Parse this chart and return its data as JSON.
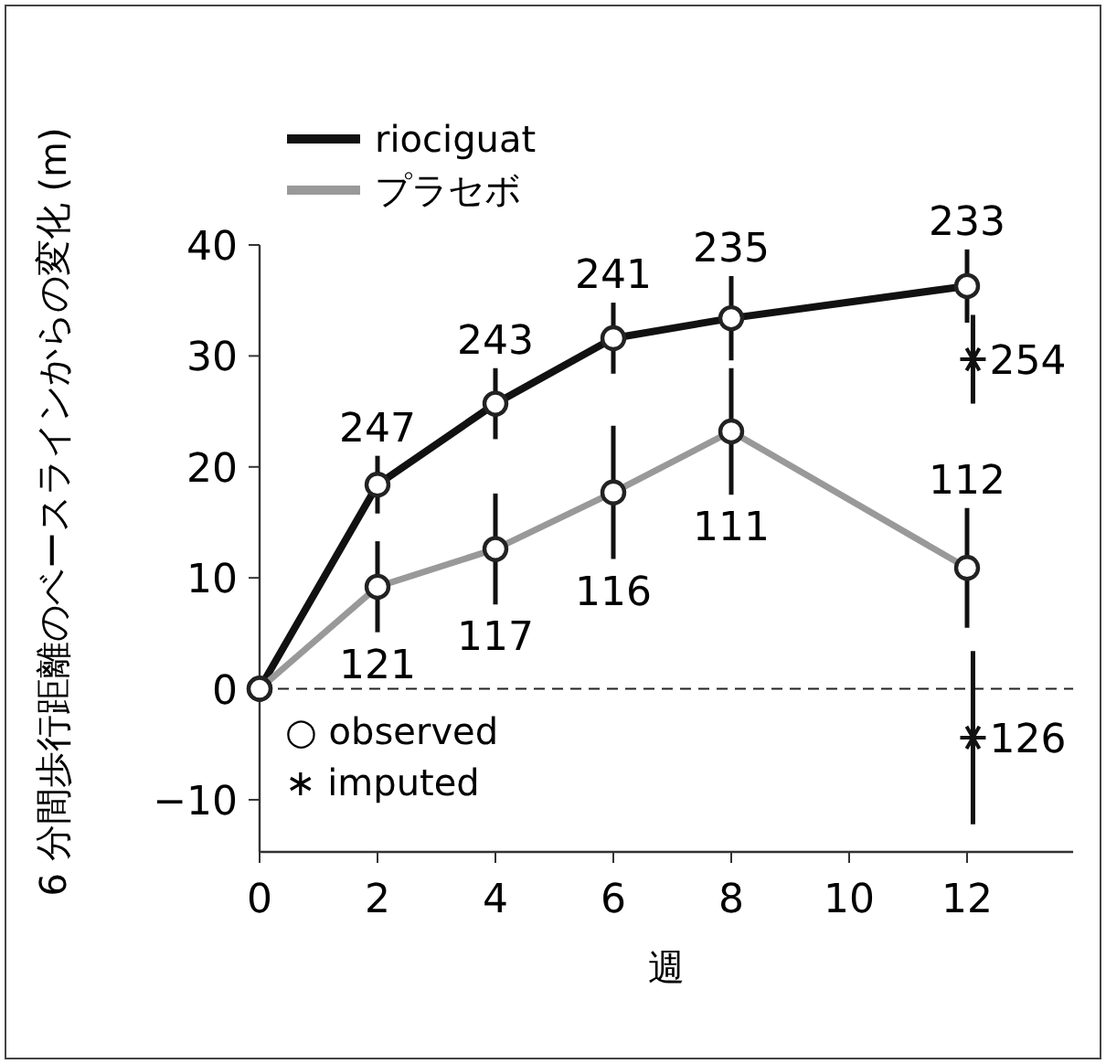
{
  "chart_data": {
    "type": "line",
    "xlabel": "週",
    "ylabel": "6 分間歩行距離のベースラインからの変化 (m)",
    "x": [
      0,
      2,
      4,
      6,
      8,
      12
    ],
    "xlim": [
      0,
      13.8
    ],
    "ylim": [
      -14.7,
      40
    ],
    "xticks": [
      0,
      2,
      4,
      6,
      8,
      10,
      12
    ],
    "yticks": [
      -10,
      0,
      10,
      20,
      30,
      40
    ],
    "legend": "top left",
    "ref_lines": [
      {
        "axis": "y",
        "value": 0,
        "line_style": "dashed",
        "color": "#222222"
      }
    ],
    "annotations": [
      "○ observed",
      "∗ imputed",
      {
        "text": "247",
        "x": 2,
        "y": 18.4
      },
      {
        "text": "243",
        "x": 4,
        "y": 25.7
      },
      {
        "text": "241",
        "x": 6,
        "y": 31.6
      },
      {
        "text": "235",
        "x": 8,
        "y": 33.4
      },
      {
        "text": "233",
        "x": 12,
        "y": 36.3
      },
      {
        "text": "121",
        "x": 2,
        "y": 9.2
      },
      {
        "text": "117",
        "x": 4,
        "y": 12.6
      },
      {
        "text": "116",
        "x": 6,
        "y": 17.7
      },
      {
        "text": "111",
        "x": 8,
        "y": 23.2
      },
      {
        "text": "112",
        "x": 12,
        "y": 10.9
      },
      {
        "text": "254",
        "x": 12.1,
        "y": 29.7
      },
      {
        "text": "126",
        "x": 12.1,
        "y": -4.4
      }
    ],
    "series": [
      {
        "name": "riociguat",
        "color": "#111111",
        "marker": "circle",
        "values": [
          0,
          18.4,
          25.7,
          31.6,
          33.4,
          36.3
        ],
        "errors": [
          null,
          2.6,
          3.2,
          3.2,
          3.8,
          3.3
        ]
      },
      {
        "name": "プラセボ",
        "color": "#999999",
        "marker": "circle",
        "values": [
          0,
          9.2,
          12.6,
          17.7,
          23.2,
          10.9
        ],
        "errors": [
          null,
          4.1,
          5,
          6,
          5.7,
          5.4
        ]
      },
      {
        "type": "scatter",
        "color": "#111111",
        "marker": "cross",
        "x": [
          12.1
        ],
        "values": [
          29.7
        ],
        "errors": [
          4
        ]
      },
      {
        "type": "scatter",
        "color": "#111111",
        "marker": "cross",
        "x": [
          12.1
        ],
        "values": [
          -4.4
        ],
        "errors": [
          7.8
        ]
      }
    ]
  }
}
